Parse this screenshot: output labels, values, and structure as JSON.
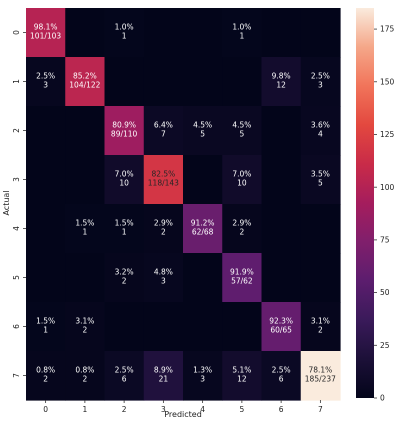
{
  "chart_data": {
    "type": "heatmap",
    "title": "",
    "xlabel": "Predicted",
    "ylabel": "Actual",
    "x_tick_labels": [
      "0",
      "1",
      "2",
      "3",
      "4",
      "5",
      "6",
      "7"
    ],
    "y_tick_labels": [
      "0",
      "1",
      "2",
      "3",
      "4",
      "5",
      "6",
      "7"
    ],
    "colorbar": {
      "ticks": [
        0,
        25,
        50,
        75,
        100,
        125,
        150,
        175
      ],
      "range": [
        0,
        185
      ],
      "colormap": "rocket"
    },
    "counts": [
      [
        101,
        0,
        1,
        0,
        0,
        1,
        0,
        0
      ],
      [
        3,
        104,
        0,
        0,
        0,
        0,
        12,
        3
      ],
      [
        0,
        0,
        89,
        7,
        5,
        5,
        0,
        4
      ],
      [
        0,
        0,
        10,
        118,
        0,
        10,
        0,
        5
      ],
      [
        0,
        1,
        1,
        2,
        62,
        2,
        0,
        0
      ],
      [
        0,
        0,
        2,
        3,
        0,
        57,
        0,
        0
      ],
      [
        1,
        2,
        0,
        0,
        0,
        0,
        60,
        2
      ],
      [
        2,
        2,
        6,
        21,
        3,
        12,
        6,
        185
      ]
    ],
    "annotations": [
      [
        "98.1%\n101/103",
        "",
        "1.0%\n1",
        "",
        "",
        "1.0%\n1",
        "",
        ""
      ],
      [
        "2.5%\n3",
        "85.2%\n104/122",
        "",
        "",
        "",
        "",
        "9.8%\n12",
        "2.5%\n3"
      ],
      [
        "",
        "",
        "80.9%\n89/110",
        "6.4%\n7",
        "4.5%\n5",
        "4.5%\n5",
        "",
        "3.6%\n4"
      ],
      [
        "",
        "",
        "7.0%\n10",
        "82.5%\n118/143",
        "",
        "7.0%\n10",
        "",
        "3.5%\n5"
      ],
      [
        "",
        "1.5%\n1",
        "1.5%\n1",
        "2.9%\n2",
        "91.2%\n62/68",
        "2.9%\n2",
        "",
        ""
      ],
      [
        "",
        "",
        "3.2%\n2",
        "4.8%\n3",
        "",
        "91.9%\n57/62",
        "",
        ""
      ],
      [
        "1.5%\n1",
        "3.1%\n2",
        "",
        "",
        "",
        "",
        "92.3%\n60/65",
        "3.1%\n2"
      ],
      [
        "0.8%\n2",
        "0.8%\n2",
        "2.5%\n6",
        "8.9%\n21",
        "1.3%\n3",
        "5.1%\n12",
        "2.5%\n6",
        "78.1%\n185/237"
      ]
    ]
  }
}
